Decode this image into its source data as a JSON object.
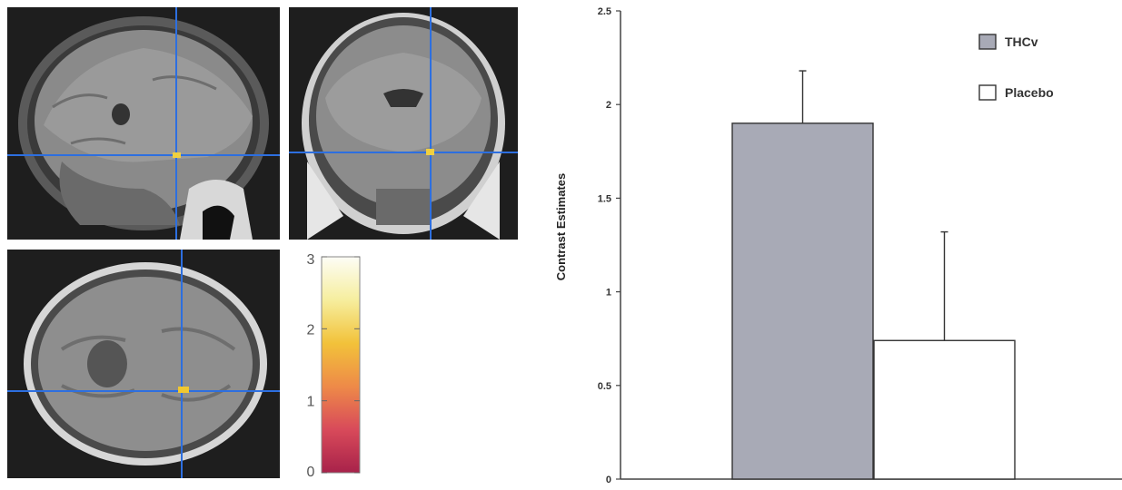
{
  "colorbar": {
    "ticks": [
      "3",
      "2",
      "1",
      "0"
    ],
    "min": 0,
    "max": 3,
    "colors": [
      "#a8224a",
      "#d84a5a",
      "#ee8a48",
      "#f2c23a",
      "#f6ee9e",
      "#fdfdf6"
    ]
  },
  "chart_data": {
    "type": "bar",
    "title": "",
    "xlabel": "",
    "ylabel": "Contrast Estimates",
    "ylim": [
      0,
      2.5
    ],
    "yticks": [
      "0",
      "0.5",
      "1",
      "1.5",
      "2",
      "2.5"
    ],
    "ytick_values": [
      0,
      0.5,
      1,
      1.5,
      2,
      2.5
    ],
    "grid": false,
    "legend_position": "top-right",
    "series": [
      {
        "name": "THCv",
        "value": 1.9,
        "error": 0.28,
        "color": "#a8aab6"
      },
      {
        "name": "Placebo",
        "value": 0.74,
        "error": 0.58,
        "color": "#ffffff"
      }
    ]
  }
}
